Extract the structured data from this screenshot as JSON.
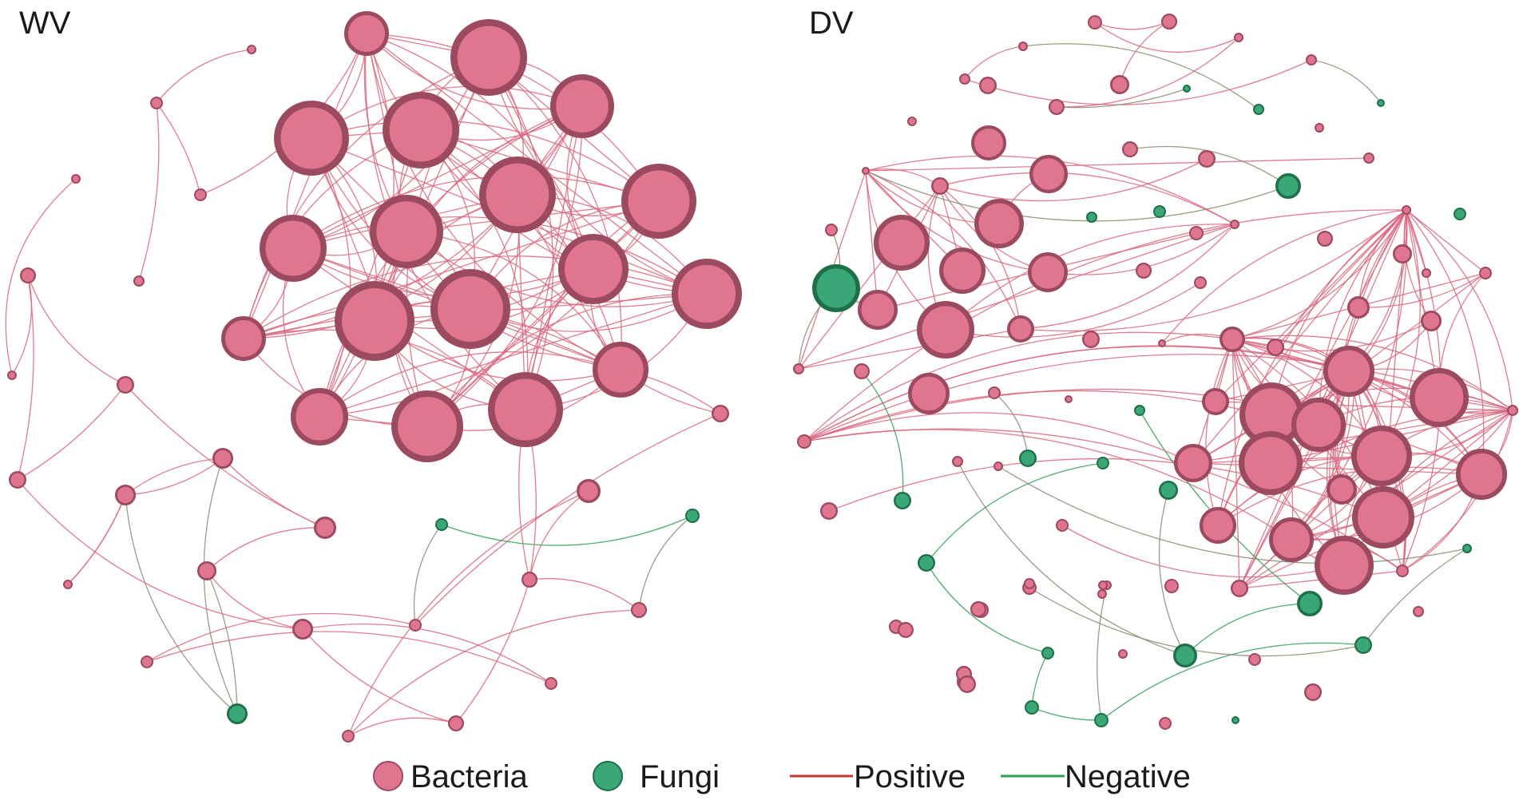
{
  "panels": [
    {
      "id": "wv",
      "label": "WV"
    },
    {
      "id": "dv",
      "label": "DV"
    }
  ],
  "legend": {
    "bacteria_label": "Bacteria",
    "fungi_label": "Fungi",
    "positive_label": "Positive",
    "negative_label": "Negative"
  },
  "colors": {
    "bacteria_fill": "#e07590",
    "bacteria_stroke": "#9c4a60",
    "fungi_fill": "#3aa876",
    "fungi_stroke": "#1f6f48",
    "positive_edge": "#d9667f",
    "negative_edge": "#2e9e55",
    "mixed_edge": "#8a8a72"
  }
}
